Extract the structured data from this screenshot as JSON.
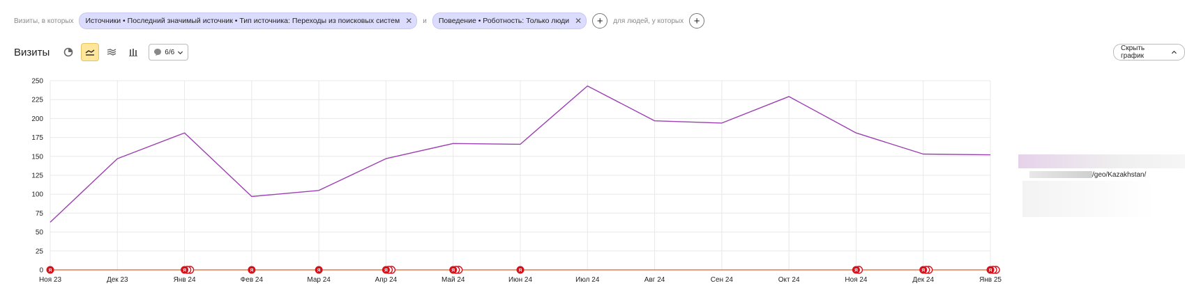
{
  "filters": {
    "visits_prefix": "Визиты, в которых",
    "chips": [
      {
        "label": "Источники • Последний значимый источник • Тип источника: Переходы из поисковых систем"
      },
      {
        "label": "Поведение • Роботность: Только люди"
      }
    ],
    "and_label": "и",
    "people_label": "для людей, у которых"
  },
  "toolbar": {
    "title": "Визиты",
    "annotations_count": "6/6",
    "hide_chart_label": "Скрыть график"
  },
  "icons": {
    "pie": "pie-chart-icon",
    "line": "line-chart-icon",
    "area": "area-chart-icon",
    "bar": "bar-chart-icon",
    "comment": "comment-icon",
    "chevron": "chevron-down-icon",
    "close": "close-icon",
    "plus": "plus-icon"
  },
  "colors": {
    "series": "#9b3fb2",
    "baseline": "#e2612b",
    "marker": "#d8101a",
    "chip_bg": "#dcdcff",
    "active_btn": "#ffe69a"
  },
  "chart_data": {
    "type": "line",
    "categories": [
      "Ноя 23",
      "Дек 23",
      "Янв 24",
      "Фев 24",
      "Мар 24",
      "Апр 24",
      "Май 24",
      "Июн 24",
      "Июл 24",
      "Авг 24",
      "Сен 24",
      "Окт 24",
      "Ноя 24",
      "Дек 24",
      "Янв 25"
    ],
    "series": [
      {
        "values": [
          63,
          147,
          181,
          97,
          105,
          147,
          167,
          166,
          243,
          197,
          194,
          229,
          181,
          153,
          152
        ]
      }
    ],
    "ylim": [
      0,
      250
    ],
    "yticks": [
      0,
      25,
      50,
      75,
      100,
      125,
      150,
      175,
      200,
      225,
      250
    ],
    "grid": true,
    "annotation_markers": [
      {
        "category": "Ноя 23",
        "count": 1
      },
      {
        "category": "Янв 24",
        "count": 3
      },
      {
        "category": "Фев 24",
        "count": 1
      },
      {
        "category": "Мар 24",
        "count": 1
      },
      {
        "category": "Апр 24",
        "count": 3
      },
      {
        "category": "Май 24",
        "count": 3
      },
      {
        "category": "Июн 24",
        "count": 1
      },
      {
        "category": "Ноя 24",
        "count": 2
      },
      {
        "category": "Дек 24",
        "count": 3
      },
      {
        "category": "Янв 25",
        "count": 3
      }
    ],
    "marker_label": "Я"
  },
  "tooltip": {
    "url_suffix": "/geo/Kazakhstan/"
  }
}
